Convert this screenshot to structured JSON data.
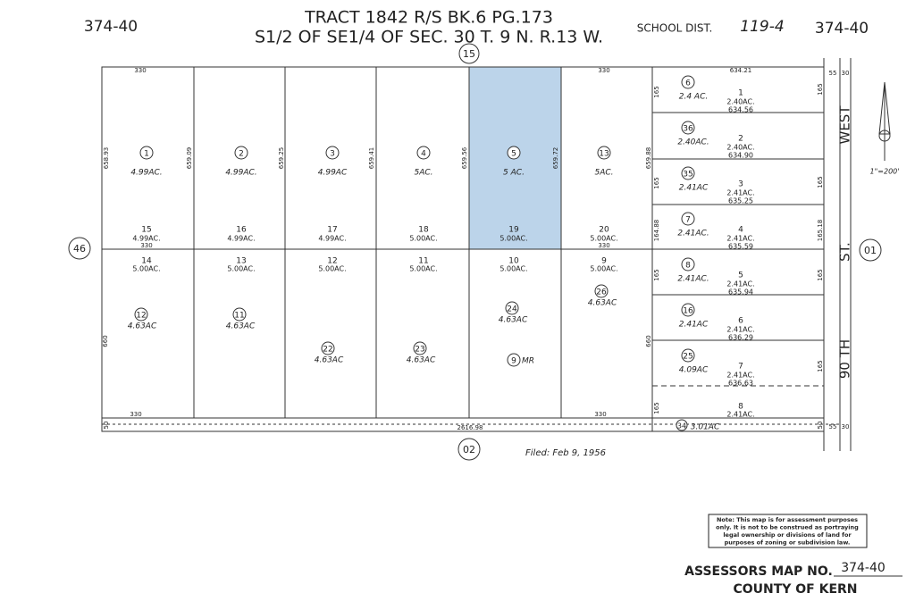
{
  "header": {
    "map_left": "374-40",
    "title_line1": "TRACT 1842 R/S BK.6 PG.173",
    "title_line2": "S1/2 OF SE1/4 OF SEC. 30 T. 9 N. R.13 W.",
    "school_dist_label": "SCHOOL DIST.",
    "school_dist": "119-4",
    "map_right": "374-40"
  },
  "road_circles": {
    "top": "15",
    "left": "46",
    "right": "01",
    "bottom": "02"
  },
  "street": {
    "name": "WEST",
    "number": "90 TH",
    "suffix": "ST."
  },
  "scale": "1\"=200'",
  "parcels_upper": [
    {
      "number": "1",
      "area": "4.99AC."
    },
    {
      "number": "2",
      "area": "4.99AC."
    },
    {
      "number": "3",
      "area": "4.99AC"
    },
    {
      "number": "4",
      "area": "5AC."
    },
    {
      "number": "5",
      "area": "5 AC."
    },
    {
      "number": "13",
      "area": "5AC."
    }
  ],
  "lots_upper": [
    {
      "number": "15",
      "area": "4.99AC."
    },
    {
      "number": "16",
      "area": "4.99AC."
    },
    {
      "number": "17",
      "area": "4.99AC."
    },
    {
      "number": "18",
      "area": "5.00AC."
    },
    {
      "number": "19",
      "area": "5.00AC."
    },
    {
      "number": "20",
      "area": "5.00AC."
    }
  ],
  "lots_lower": [
    {
      "number": "14",
      "area": "5.00AC."
    },
    {
      "number": "13",
      "area": "5.00AC."
    },
    {
      "number": "12",
      "area": "5.00AC."
    },
    {
      "number": "11",
      "area": "5.00AC."
    },
    {
      "number": "10",
      "area": "5.00AC."
    },
    {
      "number": "9",
      "area": "5.00AC."
    }
  ],
  "parcels_lower": [
    {
      "number": "12",
      "area": "4.63AC"
    },
    {
      "number": "11",
      "area": "4.63AC"
    },
    {
      "number": "22",
      "area": "4.63AC"
    },
    {
      "number": "23",
      "area": "4.63AC"
    },
    {
      "number": "24",
      "area": "4.63AC"
    },
    {
      "number": "9",
      "area": "MR"
    },
    {
      "number": "26",
      "area": "4.63AC"
    }
  ],
  "strip": [
    {
      "parcel": "6",
      "parcel_area": "2.4 AC.",
      "lot": "1",
      "lot_area": "2.40AC.",
      "width": "634.56"
    },
    {
      "parcel": "36",
      "parcel_area": "2.40AC.",
      "lot": "2",
      "lot_area": "2.40AC.",
      "width": "634.90"
    },
    {
      "parcel": "35",
      "parcel_area": "2.41AC",
      "lot": "3",
      "lot_area": "2.41AC.",
      "width": "635.25"
    },
    {
      "parcel": "7",
      "parcel_area": "2.41AC.",
      "lot": "4",
      "lot_area": "2.41AC.",
      "width": "635.59"
    },
    {
      "parcel": "8",
      "parcel_area": "2.41AC.",
      "lot": "5",
      "lot_area": "2.41AC.",
      "width": "635.94"
    },
    {
      "parcel": "16",
      "parcel_area": "2.41AC",
      "lot": "6",
      "lot_area": "2.41AC.",
      "width": "636.29"
    },
    {
      "parcel": "25",
      "parcel_area": "4.09AC",
      "lot": "7",
      "lot_area": "2.41AC.",
      "width": "636.63"
    }
  ],
  "strip_last_lot": {
    "lot": "8",
    "lot_area": "2.41AC."
  },
  "bottom_parcel": {
    "number": "34",
    "area": "3.01AC"
  },
  "dimensions": [
    "330",
    "330",
    "634.21",
    "658.93",
    "659.09",
    "659.25",
    "659.41",
    "659.56",
    "659.72",
    "659.88",
    "330",
    "330",
    "660",
    "660",
    "330",
    "330",
    "2616.98",
    "50",
    "50",
    "55",
    "30",
    "55",
    "30",
    "165",
    "165",
    "164.88",
    "165",
    "165",
    "165",
    "165",
    "165.18",
    "165",
    "165"
  ],
  "filed": "Filed: Feb 9, 1956",
  "note": [
    "Note: This map is for assessment purposes",
    "only. It is not to be construed as portraying",
    "legal ownership or divisions of land for",
    "purposes of zoning or subdivision law."
  ],
  "footer": {
    "map_no_label": "ASSESSORS MAP NO.",
    "map_no": "374-40",
    "county": "COUNTY OF KERN"
  }
}
